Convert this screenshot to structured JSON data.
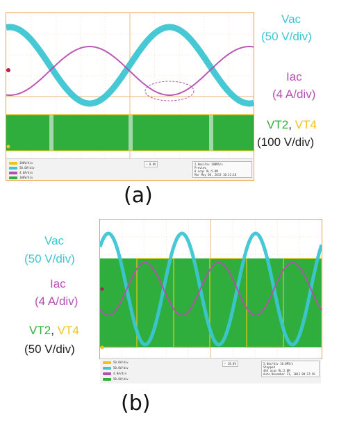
{
  "colors": {
    "vac": "#3cc6d2",
    "iac": "#b54fb0",
    "vt2": "#2fae3d",
    "vt4": "#f3c21a",
    "grid": "#e0a455",
    "label_dark": "#222222"
  },
  "panel_a": {
    "caption": "(a)",
    "vac_label": "Vac",
    "vac_scale": "(50 V/div)",
    "iac_label": "Iac",
    "iac_scale": "(4 A/div)",
    "vt2_label": "VT2",
    "separator": ", ",
    "vt4_label": "VT4",
    "vt_scale": "(100 V/div)",
    "channels": [
      "100V/div",
      "50.0V/div",
      "4.0A/div",
      "100V/div"
    ],
    "trigger": "0.8V",
    "timebase": "2.0ms/div  200MS/s",
    "status": [
      "Preview",
      "0 acqs",
      "Mar  May 06, 2013"
    ],
    "record": "RL:5.0M",
    "time": "10:21:18"
  },
  "panel_b": {
    "caption": "(b)",
    "vac_label": "Vac",
    "vac_scale": "(50 V/div)",
    "iac_label": "Iac",
    "iac_scale": "(4 A/div)",
    "vt2_label": "VT2",
    "separator": ", ",
    "vt4_label": "VT4",
    "vt_scale": "(50 V/div)",
    "channels": [
      "50.0V/div",
      "50.0V/div",
      "4.0A/div",
      "50.0V/div"
    ],
    "trigger": "28.0V",
    "timebase": "5.0ms/div  10.0MS/s",
    "status": [
      "Stopped",
      "444 acqs",
      "Auto  November 21, 2013"
    ],
    "record": "RL:2.0M",
    "time": "09:17:56"
  }
}
